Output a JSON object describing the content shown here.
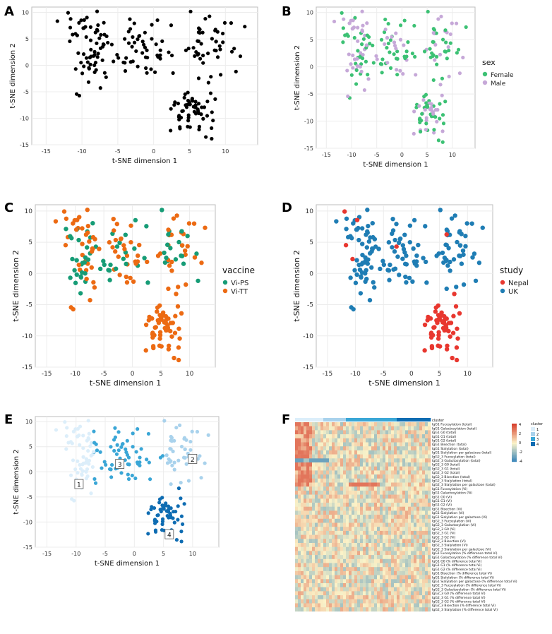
{
  "colors": {
    "black": "#000000",
    "female": "#3cc174",
    "male": "#c6a8d8",
    "vips": "#169c76",
    "vitt": "#ec6a13",
    "nepal": "#e8372f",
    "uk": "#1f7db4",
    "cl1": "#dceefa",
    "cl2": "#a9d2ec",
    "cl3": "#3aa6d6",
    "cl4": "#0e6cb2",
    "hm_low": "#2e7fb8",
    "hm_mid": "#fbf3c8",
    "hm_high": "#d73f2c"
  },
  "chart_data": [
    {
      "panel": "A",
      "type": "scatter",
      "xlabel": "t-SNE dimension 1",
      "ylabel": "t-SNE dimension 2",
      "xlim": [
        -17,
        14.5
      ],
      "ylim": [
        -15,
        11
      ],
      "xticks": [
        "-15",
        "-10",
        "-5",
        "0",
        "5",
        "10"
      ],
      "yticks": [
        "-15",
        "-10",
        "-5",
        "0",
        "5",
        "10"
      ],
      "color_by": "none",
      "legend": null
    },
    {
      "panel": "B",
      "type": "scatter",
      "xlabel": "t-SNE dimension 1",
      "ylabel": "t-SNE dimension 2",
      "xlim": [
        -17,
        14.5
      ],
      "ylim": [
        -15,
        11
      ],
      "xticks": [
        "-15",
        "-10",
        "-5",
        "0",
        "5",
        "10"
      ],
      "yticks": [
        "-15",
        "-10",
        "-5",
        "0",
        "5",
        "10"
      ],
      "color_by": "sex",
      "legend": {
        "title": "sex",
        "entries": [
          "Female",
          "Male"
        ]
      }
    },
    {
      "panel": "C",
      "type": "scatter",
      "xlabel": "t-SNE dimension 1",
      "ylabel": "t-SNE dimension 2",
      "xlim": [
        -17,
        14.5
      ],
      "ylim": [
        -15,
        11
      ],
      "xticks": [
        "-15",
        "-10",
        "-5",
        "0",
        "5",
        "10"
      ],
      "yticks": [
        "-15",
        "-10",
        "-5",
        "0",
        "5",
        "10"
      ],
      "color_by": "vaccine",
      "legend": {
        "title": "vaccine",
        "entries": [
          "Vi-PS",
          "Vi-TT"
        ]
      }
    },
    {
      "panel": "D",
      "type": "scatter",
      "xlabel": "t-SNE dimension 1",
      "ylabel": "t-SNE dimension 2",
      "xlim": [
        -17,
        14.5
      ],
      "ylim": [
        -15,
        11
      ],
      "xticks": [
        "-15",
        "-10",
        "-5",
        "0",
        "5",
        "10"
      ],
      "yticks": [
        "-15",
        "-10",
        "-5",
        "0",
        "5",
        "10"
      ],
      "color_by": "study",
      "legend": {
        "title": "study",
        "entries": [
          "Nepal",
          "UK"
        ]
      }
    },
    {
      "panel": "E",
      "type": "scatter",
      "xlabel": "t-SNE dimension 1",
      "ylabel": "t-SNE dimension 2",
      "xlim": [
        -17,
        14.5
      ],
      "ylim": [
        -15,
        11
      ],
      "xticks": [
        "-15",
        "-10",
        "-5",
        "0",
        "5",
        "10"
      ],
      "yticks": [
        "-15",
        "-10",
        "-5",
        "0",
        "5",
        "10"
      ],
      "color_by": "cluster",
      "legend": null,
      "cluster_labels": [
        {
          "label": "1",
          "x": -9.5,
          "y": -2.5
        },
        {
          "label": "2",
          "x": 10.0,
          "y": 2.5
        },
        {
          "label": "3",
          "x": -2.5,
          "y": 1.5
        },
        {
          "label": "4",
          "x": 6.0,
          "y": -12.5
        }
      ]
    },
    {
      "panel": "F",
      "type": "heatmap",
      "cluster_header_label": "cluster",
      "legend": {
        "scale_ticks": [
          "4",
          "2",
          "0",
          "-2",
          "-4"
        ],
        "cluster_title": "cluster",
        "cluster_entries": [
          "1",
          "2",
          "3",
          "4"
        ]
      },
      "row_labels": [
        "IgG1 Fucosylation (total)",
        "IgG1 Galactosylation (total)",
        "IgG1 G0 (total)",
        "IgG1 G1 (total)",
        "IgG1 G2 (total)",
        "IgG1 Bisection (total)",
        "IgG1 Sialylation (total)",
        "IgG1 Sialylation per galactose (total)",
        "IgG2_3 Fucosylation (total)",
        "IgG2_3 Galactosylation (total)",
        "IgG2_3 G0 (total)",
        "IgG2_3 G1 (total)",
        "IgG2_3 G2 (total)",
        "IgG2_3 Bisection (total)",
        "IgG2_3 Sialylation (total)",
        "IgG2_3 Sialylation per galactose (total)",
        "IgG1 Fucosylation (Vi)",
        "IgG1 Galactosylation (Vi)",
        "IgG1 G0 (Vi)",
        "IgG1 G1 (Vi)",
        "IgG1 G2 (Vi)",
        "IgG1 Bisection (Vi)",
        "IgG1 Sialylation (Vi)",
        "IgG1 Sialylation per galactose (Vi)",
        "IgG2_3 Fucosylation (Vi)",
        "IgG2_3 Galactosylation (Vi)",
        "IgG2_3 G0 (Vi)",
        "IgG2_3 G1 (Vi)",
        "IgG2_3 G2 (Vi)",
        "IgG2_3 Bisection (Vi)",
        "IgG2_3 Sialylation (Vi)",
        "IgG2_3 Sialylation per galactose (Vi)",
        "IgG1 Fucosylation (% difference total Vi)",
        "IgG1 Galactosylation (% difference total Vi)",
        "IgG1 G0 (% difference total Vi)",
        "IgG1 G1 (% difference total Vi)",
        "IgG1 G2 (% difference total Vi)",
        "IgG1 Bisection (% difference total Vi)",
        "IgG1 Sialylation (% difference total Vi)",
        "IgG1 Sialylation per galactose (% difference total Vi)",
        "IgG2_3 Fucosylation (% difference total Vi)",
        "IgG2_3 Galactosylation (% difference total Vi)",
        "IgG2_3 G0 (% difference total Vi)",
        "IgG2_3 G1 (% difference total Vi)",
        "IgG2_3 G2 (% difference total Vi)",
        "IgG2_3 Bisection (% difference total Vi)",
        "IgG2_3 Sialylation (% difference total Vi)"
      ]
    }
  ]
}
